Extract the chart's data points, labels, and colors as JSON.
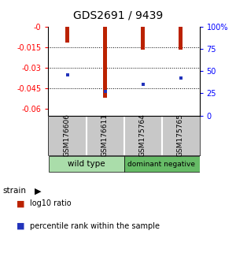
{
  "title": "GDS2691 / 9439",
  "samples": [
    "GSM176606",
    "GSM176611",
    "GSM175764",
    "GSM175765"
  ],
  "log10_ratio": [
    -0.012,
    -0.052,
    -0.017,
    -0.017
  ],
  "percentile_rank": [
    46,
    27,
    35,
    42
  ],
  "ylim": [
    -0.065,
    0.0
  ],
  "yticks": [
    0,
    -0.015,
    -0.03,
    -0.045,
    -0.06
  ],
  "ytick_labels": [
    "-0",
    "-0.015",
    "-0.03",
    "-0.045",
    "-0.06"
  ],
  "right_ytick_pcts": [
    100,
    75,
    50,
    25,
    0
  ],
  "right_ytick_labels": [
    "100%",
    "75",
    "50",
    "25",
    "0"
  ],
  "bar_color": "#bb2200",
  "blue_color": "#2233bb",
  "bar_width": 0.12,
  "background_color": "#ffffff",
  "label_area_color": "#c8c8c8",
  "group_wt_color": "#aaddaa",
  "group_dn_color": "#66bb66"
}
